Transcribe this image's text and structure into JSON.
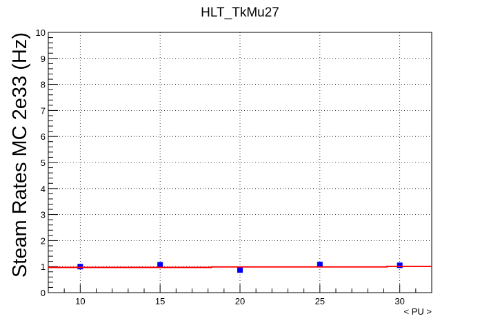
{
  "chart_data": {
    "type": "scatter",
    "title": "HLT_TkMu27",
    "xlabel": "< PU >",
    "ylabel": "Steam Rates MC 2e33 (Hz)",
    "xlim": [
      8,
      32
    ],
    "ylim": [
      0,
      10
    ],
    "xticks": [
      10,
      15,
      20,
      25,
      30
    ],
    "yticks": [
      0,
      1,
      2,
      3,
      4,
      5,
      6,
      7,
      8,
      9,
      10
    ],
    "grid": true,
    "series": [
      {
        "kind": "points",
        "color": "#0000ff",
        "x": [
          10,
          15,
          20,
          25,
          30
        ],
        "y": [
          1.0,
          1.07,
          0.87,
          1.08,
          1.05
        ]
      },
      {
        "kind": "fit-line",
        "color": "#ff0000",
        "x": [
          8,
          18.2,
          18.2,
          29.2,
          29.2,
          32
        ],
        "y": [
          0.97,
          0.97,
          0.99,
          0.99,
          1.01,
          1.01
        ]
      }
    ]
  }
}
